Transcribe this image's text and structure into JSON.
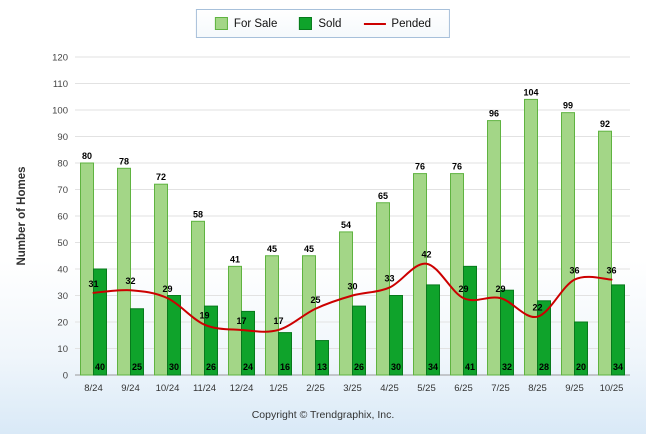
{
  "chart_data": {
    "type": "bar",
    "title": "",
    "categories": [
      "8/24",
      "9/24",
      "10/24",
      "11/24",
      "12/24",
      "1/25",
      "2/25",
      "3/25",
      "4/25",
      "5/25",
      "6/25",
      "7/25",
      "8/25",
      "9/25",
      "10/25"
    ],
    "series": [
      {
        "name": "For Sale",
        "type": "bar",
        "color": "#A3D687",
        "border": "#5FB340",
        "values": [
          80,
          78,
          72,
          58,
          41,
          45,
          45,
          54,
          65,
          76,
          76,
          96,
          104,
          99,
          92
        ]
      },
      {
        "name": "Sold",
        "type": "bar",
        "color": "#0FA32B",
        "border": "#077A1C",
        "values": [
          40,
          25,
          30,
          26,
          24,
          16,
          13,
          26,
          30,
          34,
          41,
          32,
          28,
          20,
          34
        ]
      },
      {
        "name": "Pended",
        "type": "line",
        "color": "#CC0000",
        "values": [
          31,
          32,
          29,
          19,
          17,
          17,
          25,
          30,
          33,
          42,
          29,
          29,
          22,
          36,
          36
        ]
      }
    ],
    "xlabel": "",
    "ylabel": "Number of Homes",
    "ylim": [
      0,
      120
    ],
    "ytick_step": 10,
    "grid": true,
    "legend_position": "top"
  },
  "footer": {
    "copyright": "Copyright © Trendgraphix, Inc."
  }
}
